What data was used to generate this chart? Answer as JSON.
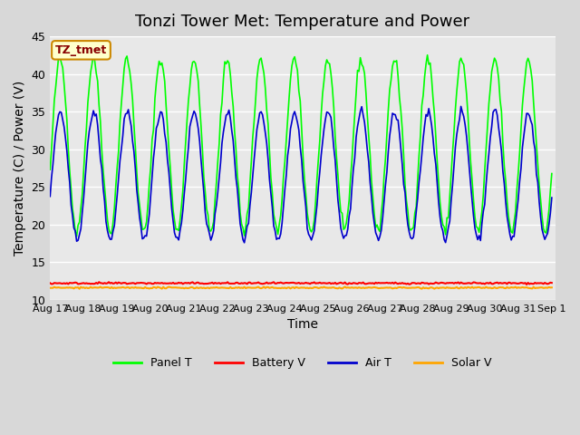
{
  "title": "Tonzi Tower Met: Temperature and Power",
  "xlabel": "Time",
  "ylabel": "Temperature (C) / Power (V)",
  "ylim": [
    10,
    45
  ],
  "x_tick_labels": [
    "Aug 17",
    "Aug 18",
    "Aug 19",
    "Aug 20",
    "Aug 21",
    "Aug 22",
    "Aug 23",
    "Aug 24",
    "Aug 25",
    "Aug 26",
    "Aug 27",
    "Aug 28",
    "Aug 29",
    "Aug 30",
    "Aug 31",
    "Sep 1"
  ],
  "annotation_text": "TZ_tmet",
  "annotation_box_facecolor": "#FFFFCC",
  "annotation_box_edgecolor": "#CC8800",
  "annotation_text_color": "#880000",
  "fig_bg_color": "#D8D8D8",
  "plot_bg_color": "#E8E8E8",
  "grid_color": "white",
  "panel_t_color": "#00FF00",
  "battery_v_color": "#FF0000",
  "air_t_color": "#0000CC",
  "solar_v_color": "#FFA500",
  "title_fontsize": 13,
  "axis_fontsize": 10,
  "tick_fontsize": 9
}
